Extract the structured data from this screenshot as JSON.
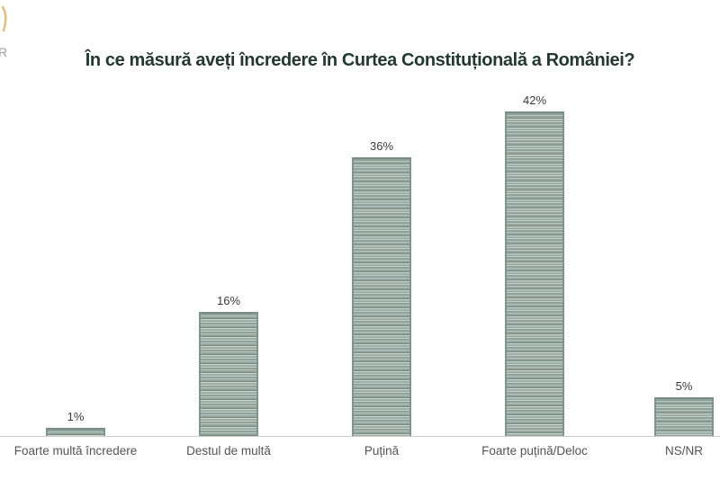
{
  "logo": {
    "letter": "R",
    "arc_color": "#d8a855",
    "letter_color": "#9aa0a0"
  },
  "title": {
    "text": "În ce măsură aveți încredere în Curtea Constituțională a României?",
    "color": "#233830"
  },
  "chart_data": {
    "type": "bar",
    "title": "În ce măsură aveți încredere în Curtea Constituțională a României?",
    "categories": [
      "Foarte multă încredere",
      "Destul de multă",
      "Puțină",
      "Foarte puțină/Deloc",
      "NS/NR"
    ],
    "values": [
      1,
      16,
      36,
      42,
      5
    ],
    "value_labels": [
      "1%",
      "16%",
      "36%",
      "42%",
      "5%"
    ],
    "xlabel": "",
    "ylabel": "",
    "ylim": [
      0,
      45
    ],
    "grid": false,
    "legend": "none",
    "bar_color_base": "#93a79f",
    "bar_stripe_light": "#c6d2cd",
    "bar_stripe_dark": "#75897f",
    "axis_line_color": "#cbcbcb",
    "value_label_color": "#3a3a3a",
    "category_label_color": "#545454",
    "title_color": "#233830"
  }
}
